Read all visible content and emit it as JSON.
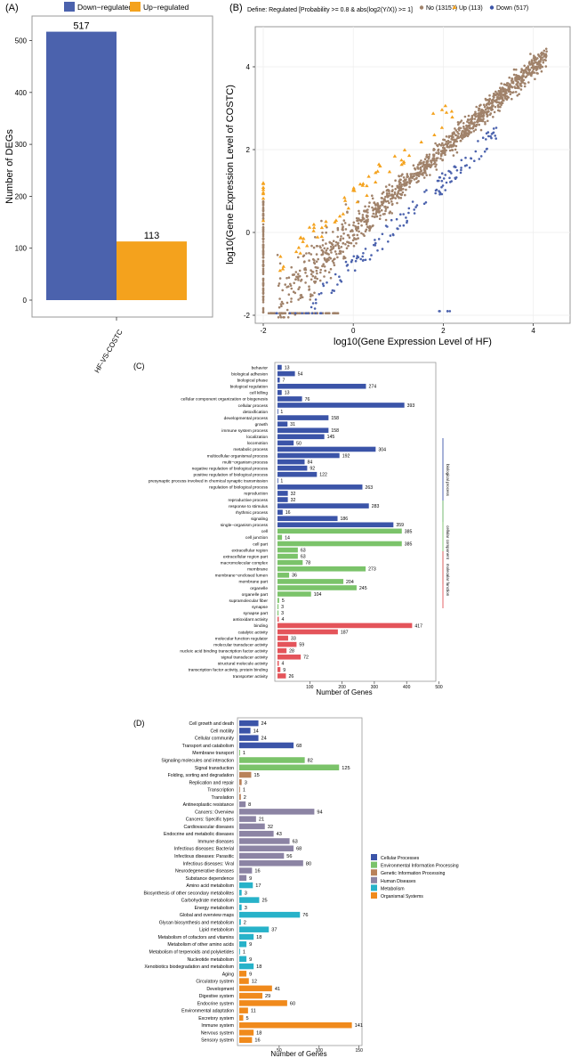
{
  "panel_labels": {
    "a": "(A)",
    "b": "(B)",
    "c": "(C)",
    "d": "(D)"
  },
  "colors": {
    "down": "#4b62ad",
    "up": "#f4a21d",
    "no": "#a0826a",
    "bp": "#3b54a8",
    "cc": "#7bc36a",
    "mf": "#e4545a",
    "cellular": "#3b54a8",
    "environmental": "#7bc36a",
    "genetic": "#b9825a",
    "human": "#8c84a4",
    "metabolism": "#27b2c9",
    "organismal": "#f08a1c"
  },
  "chart_data": [
    {
      "id": "A",
      "type": "bar",
      "categories": [
        "HF-VS-COSTC"
      ],
      "series": [
        {
          "name": "Down−regulated",
          "values": [
            517
          ],
          "color": "#4b62ad"
        },
        {
          "name": "Up−regulated",
          "values": [
            113
          ],
          "color": "#f4a21d"
        }
      ],
      "ylabel": "Number of DEGs",
      "ylim": [
        0,
        540
      ],
      "yticks": [
        0,
        100,
        200,
        300,
        400,
        500
      ],
      "legend": "top",
      "grid": false
    },
    {
      "id": "B",
      "type": "scatter",
      "title": "Define: Regulated [Probability >= 0.8 & abs(log2(Y/X)) >= 1]",
      "xlabel": "log10(Gene Expression Level of HF)",
      "ylabel": "log10(Gene Expression Level of COSTC)",
      "xlim": [
        -2.1,
        4.7
      ],
      "ylim": [
        -2.15,
        4.8
      ],
      "xticks": [
        -2,
        0,
        2,
        4
      ],
      "yticks": [
        -2,
        0,
        2,
        4
      ],
      "legend": "top",
      "grid": true,
      "series": [
        {
          "name": "No (13157)",
          "count": 13157,
          "color": "#a0826a",
          "shape": "circle"
        },
        {
          "name": "Up (113)",
          "count": 113,
          "color": "#f4a21d",
          "shape": "triangle"
        },
        {
          "name": "Down (517)",
          "count": 517,
          "color": "#3b54a8",
          "shape": "circle"
        }
      ]
    },
    {
      "id": "C",
      "type": "bar",
      "orientation": "horizontal",
      "xlabel": "Number of Genes",
      "xlim": [
        0,
        520
      ],
      "xticks": [
        100,
        200,
        300,
        400,
        500
      ],
      "group_labels": [
        {
          "name": "biological process",
          "color": "#3b54a8"
        },
        {
          "name": "cellular component",
          "color": "#7bc36a"
        },
        {
          "name": "molecular function",
          "color": "#e4545a"
        }
      ],
      "categories": [
        "behavior",
        "biological adhesion",
        "biological phase",
        "biological regulation",
        "cell killing",
        "cellular component organization or biogenesis",
        "cellular process",
        "detoxification",
        "developmental process",
        "growth",
        "immune system process",
        "localization",
        "locomotion",
        "metabolic process",
        "multicellular organismal process",
        "multi−organism process",
        "negative regulation of biological process",
        "positive regulation of biological process",
        "presynaptic process involved in chemical synaptic transmission",
        "regulation of biological process",
        "reproduction",
        "reproductive process",
        "response to stimulus",
        "rhythmic process",
        "signaling",
        "single−organism process",
        "cell",
        "cell junction",
        "cell part",
        "extracellular region",
        "extracellular region part",
        "macromolecular complex",
        "membrane",
        "membrane−enclosed lumen",
        "membrane part",
        "organelle",
        "organelle part",
        "supramolecular fiber",
        "synapse",
        "synapse part",
        "antioxidant activity",
        "binding",
        "catalytic activity",
        "molecular function regulator",
        "molecular transducer activity",
        "nucleic acid binding transcription factor activity",
        "signal transducer activity",
        "structural molecule activity",
        "transcription factor activity, protein binding",
        "transporter activity"
      ],
      "values": [
        13,
        54,
        7,
        274,
        13,
        76,
        393,
        1,
        158,
        31,
        158,
        145,
        50,
        304,
        192,
        84,
        92,
        122,
        1,
        263,
        32,
        32,
        283,
        16,
        186,
        359,
        385,
        14,
        385,
        63,
        63,
        78,
        273,
        36,
        204,
        245,
        104,
        5,
        3,
        3,
        4,
        417,
        187,
        33,
        59,
        28,
        72,
        4,
        9,
        26
      ],
      "groups": [
        "bp",
        "bp",
        "bp",
        "bp",
        "bp",
        "bp",
        "bp",
        "bp",
        "bp",
        "bp",
        "bp",
        "bp",
        "bp",
        "bp",
        "bp",
        "bp",
        "bp",
        "bp",
        "bp",
        "bp",
        "bp",
        "bp",
        "bp",
        "bp",
        "bp",
        "bp",
        "cc",
        "cc",
        "cc",
        "cc",
        "cc",
        "cc",
        "cc",
        "cc",
        "cc",
        "cc",
        "cc",
        "cc",
        "cc",
        "cc",
        "mf",
        "mf",
        "mf",
        "mf",
        "mf",
        "mf",
        "mf",
        "mf",
        "mf",
        "mf"
      ]
    },
    {
      "id": "D",
      "type": "bar",
      "orientation": "horizontal",
      "xlabel": "Number of Genes",
      "xlim": [
        0,
        155
      ],
      "xticks": [
        50,
        100,
        150
      ],
      "legend": "right",
      "legend_entries": [
        {
          "key": "cellular",
          "name": "Cellular Processes"
        },
        {
          "key": "environmental",
          "name": "Environmental Information Processing"
        },
        {
          "key": "genetic",
          "name": "Genetic Information Processing"
        },
        {
          "key": "human",
          "name": "Human Diseases"
        },
        {
          "key": "metabolism",
          "name": "Metabolism"
        },
        {
          "key": "organismal",
          "name": "Organismal Systems"
        }
      ],
      "categories": [
        "Cell growth and death",
        "Cell motility",
        "Cellular community",
        "Transport and catabolism",
        "Membrane transport",
        "Signaling molecules and interaction",
        "Signal transduction",
        "Folding, sorting and degradation",
        "Replication and repair",
        "Transcription",
        "Translation",
        "Antineoplastic resistance",
        "Cancers: Overview",
        "Cancers: Specific types",
        "Cardiovascular diseases",
        "Endocrine and metabolic diseases",
        "Immune diseases",
        "Infectious diseases: Bacterial",
        "Infectious diseases: Parasitic",
        "Infectious diseases: Viral",
        "Neurodegenerative diseases",
        "Substance dependence",
        "Amino acid metabolism",
        "Biosynthesis of other secondary metabolites",
        "Carbohydrate metabolism",
        "Energy metabolism",
        "Global and overview maps",
        "Glycan biosynthesis and metabolism",
        "Lipid metabolism",
        "Metabolism of cofactors and vitamins",
        "Metabolism of other amino acids",
        "Metabolism of terpenoids and polyketides",
        "Nucleotide metabolism",
        "Xenobiotics biodegradation and metabolism",
        "Aging",
        "Circulatory system",
        "Development",
        "Digestive system",
        "Endocrine system",
        "Environmental adaptation",
        "Excretory system",
        "Immune system",
        "Nervous system",
        "Sensory system"
      ],
      "values": [
        24,
        14,
        24,
        68,
        1,
        82,
        125,
        15,
        3,
        1,
        2,
        8,
        94,
        21,
        32,
        43,
        63,
        68,
        56,
        80,
        16,
        9,
        17,
        3,
        25,
        3,
        76,
        2,
        37,
        18,
        9,
        1,
        9,
        18,
        9,
        12,
        41,
        29,
        60,
        11,
        5,
        141,
        18,
        16
      ],
      "groups": [
        "cellular",
        "cellular",
        "cellular",
        "cellular",
        "environmental",
        "environmental",
        "environmental",
        "genetic",
        "genetic",
        "genetic",
        "genetic",
        "human",
        "human",
        "human",
        "human",
        "human",
        "human",
        "human",
        "human",
        "human",
        "human",
        "human",
        "metabolism",
        "metabolism",
        "metabolism",
        "metabolism",
        "metabolism",
        "metabolism",
        "metabolism",
        "metabolism",
        "metabolism",
        "metabolism",
        "metabolism",
        "metabolism",
        "organismal",
        "organismal",
        "organismal",
        "organismal",
        "organismal",
        "organismal",
        "organismal",
        "organismal",
        "organismal",
        "organismal"
      ]
    }
  ]
}
